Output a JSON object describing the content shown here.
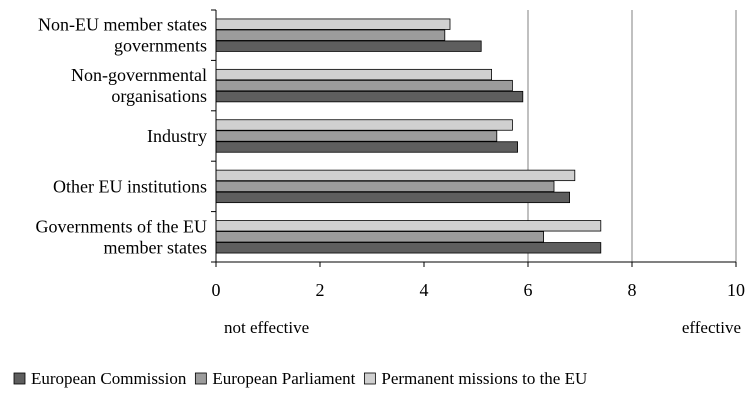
{
  "chart_data": {
    "type": "bar",
    "orientation": "horizontal",
    "categories": [
      [
        "Non-EU member states",
        "governments"
      ],
      [
        "Non-governmental",
        "organisations"
      ],
      [
        "Industry"
      ],
      [
        "Other EU institutions"
      ],
      [
        "Governments of the EU",
        "member states"
      ]
    ],
    "series": [
      {
        "name": "Permanent missions to the EU",
        "color": "#d0d0d0",
        "values": [
          4.5,
          5.3,
          5.7,
          6.9,
          7.4
        ]
      },
      {
        "name": "European Parliament",
        "color": "#9c9c9c",
        "values": [
          4.4,
          5.7,
          5.4,
          6.5,
          6.3
        ]
      },
      {
        "name": "European Commission",
        "color": "#5e5e5e",
        "values": [
          5.1,
          5.9,
          5.8,
          6.8,
          7.4
        ]
      }
    ],
    "legend_order": [
      "European Commission",
      "European Parliament",
      "Permanent missions to the EU"
    ],
    "xlim": [
      0,
      10
    ],
    "xticks": [
      0,
      2,
      4,
      6,
      8,
      10
    ],
    "gridlines_at": [
      6,
      8,
      10
    ],
    "x_scale_labels": {
      "low": "not effective",
      "high": "effective"
    },
    "legend_position": "bottom"
  }
}
